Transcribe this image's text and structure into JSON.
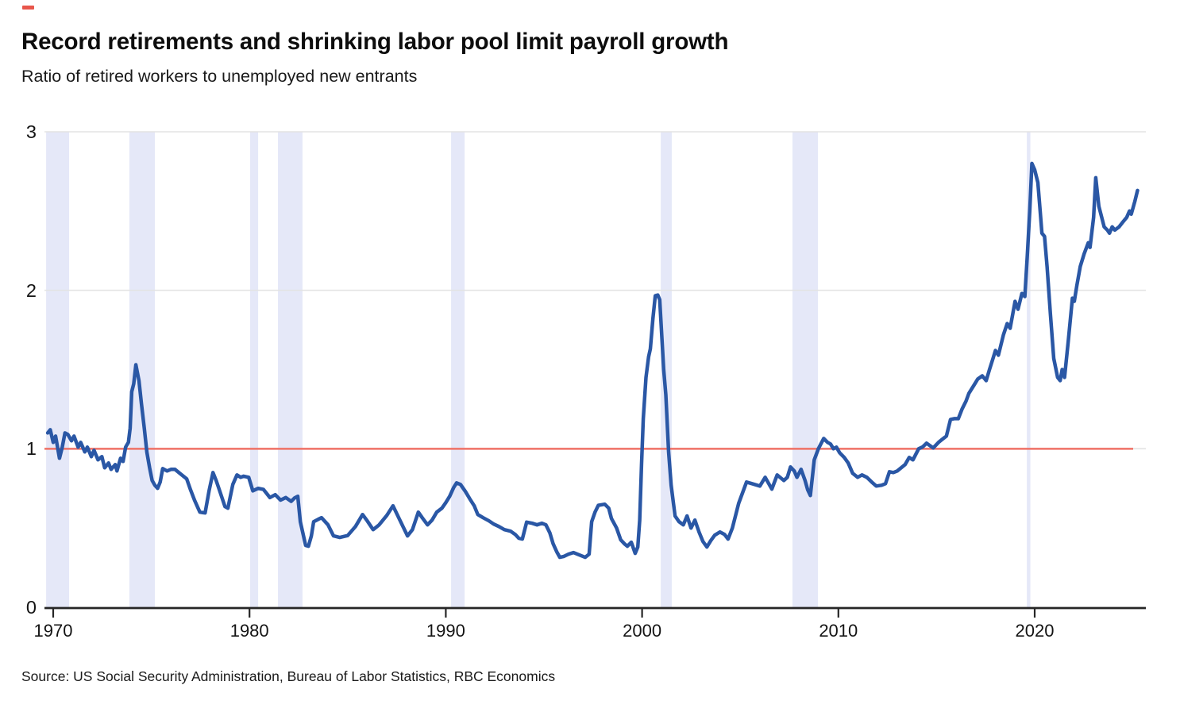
{
  "brand": {
    "accent_color": "#e8564b"
  },
  "header": {
    "title": "Record retirements and shrinking labor pool limit payroll growth",
    "subtitle": "Ratio of retired workers to unemployed new entrants"
  },
  "footer": {
    "source": "Source: US Social Security Administration, Bureau of Labor Statistics, RBC Economics"
  },
  "chart_data": {
    "type": "line",
    "title": "Record retirements and shrinking labor pool limit payroll growth",
    "subtitle": "Ratio of retired workers to unemployed new entrants",
    "xlabel": "",
    "ylabel": "",
    "xlim": [
      1969.55,
      2025.8
    ],
    "ylim": [
      0,
      3
    ],
    "x_ticks": [
      1970,
      1980,
      1990,
      2000,
      2010,
      2020
    ],
    "y_ticks": [
      0,
      1,
      2,
      3
    ],
    "grid": "horizontal",
    "gridline_color": "#e3e3e3",
    "axis_color": "#262626",
    "reference_line": {
      "value": 1.0,
      "color": "#ef7166"
    },
    "recession_bands": {
      "color": "#e5e8f8",
      "year_ranges": [
        [
          1969.64,
          1970.81
        ],
        [
          1973.88,
          1975.18
        ],
        [
          1980.03,
          1980.44
        ],
        [
          1981.45,
          1982.7
        ],
        [
          1990.27,
          1990.96
        ],
        [
          2000.95,
          2001.51
        ],
        [
          2007.66,
          2008.96
        ],
        [
          2019.6,
          2019.78
        ]
      ]
    },
    "series": [
      {
        "name": "Ratio of retired workers to unemployed new entrants",
        "color": "#2a57a5",
        "points": [
          [
            1969.72,
            1.1
          ],
          [
            1969.85,
            1.12
          ],
          [
            1970.0,
            1.04
          ],
          [
            1970.12,
            1.08
          ],
          [
            1970.32,
            0.94
          ],
          [
            1970.46,
            1.01
          ],
          [
            1970.6,
            1.1
          ],
          [
            1970.75,
            1.09
          ],
          [
            1970.93,
            1.05
          ],
          [
            1971.06,
            1.08
          ],
          [
            1971.27,
            1.01
          ],
          [
            1971.4,
            1.04
          ],
          [
            1971.61,
            0.98
          ],
          [
            1971.74,
            1.01
          ],
          [
            1971.94,
            0.95
          ],
          [
            1972.08,
            0.99
          ],
          [
            1972.28,
            0.93
          ],
          [
            1972.48,
            0.95
          ],
          [
            1972.62,
            0.88
          ],
          [
            1972.82,
            0.91
          ],
          [
            1972.95,
            0.87
          ],
          [
            1973.16,
            0.9
          ],
          [
            1973.25,
            0.86
          ],
          [
            1973.43,
            0.94
          ],
          [
            1973.56,
            0.92
          ],
          [
            1973.69,
            1.01
          ],
          [
            1973.83,
            1.04
          ],
          [
            1973.92,
            1.13
          ],
          [
            1974.0,
            1.36
          ],
          [
            1974.1,
            1.41
          ],
          [
            1974.21,
            1.53
          ],
          [
            1974.37,
            1.43
          ],
          [
            1974.5,
            1.28
          ],
          [
            1974.64,
            1.13
          ],
          [
            1974.77,
            0.98
          ],
          [
            1974.91,
            0.88
          ],
          [
            1975.04,
            0.8
          ],
          [
            1975.18,
            0.77
          ],
          [
            1975.32,
            0.75
          ],
          [
            1975.45,
            0.79
          ],
          [
            1975.58,
            0.875
          ],
          [
            1975.8,
            0.86
          ],
          [
            1976.0,
            0.87
          ],
          [
            1976.2,
            0.87
          ],
          [
            1976.45,
            0.845
          ],
          [
            1976.8,
            0.81
          ],
          [
            1977.0,
            0.74
          ],
          [
            1977.2,
            0.675
          ],
          [
            1977.47,
            0.6
          ],
          [
            1977.74,
            0.595
          ],
          [
            1977.94,
            0.735
          ],
          [
            1978.14,
            0.85
          ],
          [
            1978.3,
            0.8
          ],
          [
            1978.48,
            0.735
          ],
          [
            1978.75,
            0.635
          ],
          [
            1978.9,
            0.625
          ],
          [
            1979.15,
            0.775
          ],
          [
            1979.36,
            0.835
          ],
          [
            1979.55,
            0.82
          ],
          [
            1979.7,
            0.827
          ],
          [
            1979.96,
            0.82
          ],
          [
            1980.17,
            0.734
          ],
          [
            1980.44,
            0.75
          ],
          [
            1980.71,
            0.743
          ],
          [
            1981.04,
            0.692
          ],
          [
            1981.31,
            0.71
          ],
          [
            1981.58,
            0.676
          ],
          [
            1981.85,
            0.692
          ],
          [
            1982.12,
            0.668
          ],
          [
            1982.3,
            0.69
          ],
          [
            1982.46,
            0.7
          ],
          [
            1982.59,
            0.54
          ],
          [
            1982.86,
            0.39
          ],
          [
            1983.0,
            0.385
          ],
          [
            1983.15,
            0.45
          ],
          [
            1983.27,
            0.54
          ],
          [
            1983.5,
            0.555
          ],
          [
            1983.67,
            0.565
          ],
          [
            1984.0,
            0.52
          ],
          [
            1984.28,
            0.45
          ],
          [
            1984.6,
            0.44
          ],
          [
            1985.0,
            0.452
          ],
          [
            1985.4,
            0.51
          ],
          [
            1985.76,
            0.585
          ],
          [
            1986.0,
            0.545
          ],
          [
            1986.3,
            0.49
          ],
          [
            1986.6,
            0.52
          ],
          [
            1987.0,
            0.58
          ],
          [
            1987.31,
            0.64
          ],
          [
            1987.6,
            0.565
          ],
          [
            1988.05,
            0.45
          ],
          [
            1988.3,
            0.49
          ],
          [
            1988.6,
            0.6
          ],
          [
            1988.8,
            0.565
          ],
          [
            1989.07,
            0.52
          ],
          [
            1989.3,
            0.55
          ],
          [
            1989.54,
            0.6
          ],
          [
            1989.8,
            0.625
          ],
          [
            1990.0,
            0.66
          ],
          [
            1990.2,
            0.7
          ],
          [
            1990.4,
            0.755
          ],
          [
            1990.55,
            0.785
          ],
          [
            1990.75,
            0.775
          ],
          [
            1991.0,
            0.73
          ],
          [
            1991.22,
            0.684
          ],
          [
            1991.45,
            0.64
          ],
          [
            1991.63,
            0.585
          ],
          [
            1991.9,
            0.565
          ],
          [
            1992.2,
            0.545
          ],
          [
            1992.44,
            0.525
          ],
          [
            1992.7,
            0.51
          ],
          [
            1992.98,
            0.49
          ],
          [
            1993.3,
            0.48
          ],
          [
            1993.55,
            0.458
          ],
          [
            1993.72,
            0.435
          ],
          [
            1993.9,
            0.43
          ],
          [
            1994.12,
            0.537
          ],
          [
            1994.4,
            0.53
          ],
          [
            1994.65,
            0.52
          ],
          [
            1994.9,
            0.53
          ],
          [
            1995.1,
            0.52
          ],
          [
            1995.3,
            0.47
          ],
          [
            1995.47,
            0.4
          ],
          [
            1995.65,
            0.35
          ],
          [
            1995.81,
            0.315
          ],
          [
            1996.0,
            0.32
          ],
          [
            1996.25,
            0.335
          ],
          [
            1996.5,
            0.345
          ],
          [
            1996.8,
            0.33
          ],
          [
            1997.1,
            0.315
          ],
          [
            1997.3,
            0.335
          ],
          [
            1997.43,
            0.54
          ],
          [
            1997.6,
            0.6
          ],
          [
            1997.77,
            0.643
          ],
          [
            1998.1,
            0.65
          ],
          [
            1998.3,
            0.625
          ],
          [
            1998.44,
            0.56
          ],
          [
            1998.7,
            0.5
          ],
          [
            1998.91,
            0.425
          ],
          [
            1999.1,
            0.4
          ],
          [
            1999.25,
            0.385
          ],
          [
            1999.45,
            0.41
          ],
          [
            1999.65,
            0.34
          ],
          [
            1999.78,
            0.38
          ],
          [
            1999.88,
            0.55
          ],
          [
            1999.97,
            0.9
          ],
          [
            2000.06,
            1.19
          ],
          [
            2000.2,
            1.45
          ],
          [
            2000.33,
            1.58
          ],
          [
            2000.42,
            1.63
          ],
          [
            2000.55,
            1.82
          ],
          [
            2000.67,
            1.965
          ],
          [
            2000.8,
            1.97
          ],
          [
            2000.9,
            1.94
          ],
          [
            2001.0,
            1.72
          ],
          [
            2001.1,
            1.5
          ],
          [
            2001.21,
            1.34
          ],
          [
            2001.35,
            0.98
          ],
          [
            2001.48,
            0.77
          ],
          [
            2001.68,
            0.576
          ],
          [
            2001.88,
            0.54
          ],
          [
            2002.1,
            0.52
          ],
          [
            2002.29,
            0.576
          ],
          [
            2002.49,
            0.5
          ],
          [
            2002.69,
            0.55
          ],
          [
            2002.9,
            0.475
          ],
          [
            2003.1,
            0.415
          ],
          [
            2003.3,
            0.38
          ],
          [
            2003.5,
            0.42
          ],
          [
            2003.7,
            0.455
          ],
          [
            2003.97,
            0.475
          ],
          [
            2004.2,
            0.46
          ],
          [
            2004.38,
            0.43
          ],
          [
            2004.6,
            0.5
          ],
          [
            2004.92,
            0.655
          ],
          [
            2005.32,
            0.79
          ],
          [
            2005.6,
            0.78
          ],
          [
            2006.0,
            0.765
          ],
          [
            2006.27,
            0.82
          ],
          [
            2006.61,
            0.745
          ],
          [
            2006.88,
            0.835
          ],
          [
            2007.22,
            0.8
          ],
          [
            2007.4,
            0.82
          ],
          [
            2007.56,
            0.885
          ],
          [
            2007.75,
            0.86
          ],
          [
            2007.89,
            0.82
          ],
          [
            2008.1,
            0.87
          ],
          [
            2008.3,
            0.8
          ],
          [
            2008.44,
            0.74
          ],
          [
            2008.57,
            0.705
          ],
          [
            2008.77,
            0.93
          ],
          [
            2008.98,
            1.0
          ],
          [
            2009.25,
            1.065
          ],
          [
            2009.45,
            1.04
          ],
          [
            2009.6,
            1.03
          ],
          [
            2009.75,
            1.0
          ],
          [
            2009.9,
            1.01
          ],
          [
            2010.06,
            0.975
          ],
          [
            2010.3,
            0.945
          ],
          [
            2010.5,
            0.91
          ],
          [
            2010.73,
            0.845
          ],
          [
            2010.98,
            0.82
          ],
          [
            2011.2,
            0.835
          ],
          [
            2011.45,
            0.82
          ],
          [
            2011.7,
            0.79
          ],
          [
            2011.93,
            0.765
          ],
          [
            2012.2,
            0.77
          ],
          [
            2012.4,
            0.78
          ],
          [
            2012.6,
            0.855
          ],
          [
            2012.8,
            0.85
          ],
          [
            2013.0,
            0.86
          ],
          [
            2013.2,
            0.88
          ],
          [
            2013.4,
            0.9
          ],
          [
            2013.61,
            0.945
          ],
          [
            2013.8,
            0.93
          ],
          [
            2014.09,
            1.0
          ],
          [
            2014.3,
            1.012
          ],
          [
            2014.49,
            1.035
          ],
          [
            2014.66,
            1.02
          ],
          [
            2014.83,
            1.005
          ],
          [
            2015.1,
            1.04
          ],
          [
            2015.3,
            1.06
          ],
          [
            2015.5,
            1.08
          ],
          [
            2015.71,
            1.185
          ],
          [
            2015.9,
            1.19
          ],
          [
            2016.11,
            1.19
          ],
          [
            2016.3,
            1.25
          ],
          [
            2016.5,
            1.3
          ],
          [
            2016.65,
            1.35
          ],
          [
            2016.9,
            1.4
          ],
          [
            2017.1,
            1.44
          ],
          [
            2017.33,
            1.46
          ],
          [
            2017.53,
            1.43
          ],
          [
            2017.7,
            1.5
          ],
          [
            2017.85,
            1.56
          ],
          [
            2018.0,
            1.62
          ],
          [
            2018.15,
            1.59
          ],
          [
            2018.41,
            1.72
          ],
          [
            2018.6,
            1.79
          ],
          [
            2018.75,
            1.76
          ],
          [
            2019.0,
            1.93
          ],
          [
            2019.15,
            1.88
          ],
          [
            2019.35,
            1.98
          ],
          [
            2019.5,
            1.96
          ],
          [
            2019.62,
            2.21
          ],
          [
            2019.75,
            2.5
          ],
          [
            2019.86,
            2.8
          ],
          [
            2020.0,
            2.76
          ],
          [
            2020.16,
            2.68
          ],
          [
            2020.28,
            2.5
          ],
          [
            2020.37,
            2.36
          ],
          [
            2020.5,
            2.34
          ],
          [
            2020.63,
            2.15
          ],
          [
            2020.8,
            1.85
          ],
          [
            2020.97,
            1.57
          ],
          [
            2021.17,
            1.45
          ],
          [
            2021.3,
            1.43
          ],
          [
            2021.4,
            1.5
          ],
          [
            2021.52,
            1.45
          ],
          [
            2021.71,
            1.68
          ],
          [
            2021.92,
            1.95
          ],
          [
            2022.02,
            1.93
          ],
          [
            2022.15,
            2.03
          ],
          [
            2022.32,
            2.15
          ],
          [
            2022.52,
            2.23
          ],
          [
            2022.73,
            2.3
          ],
          [
            2022.82,
            2.27
          ],
          [
            2023.0,
            2.46
          ],
          [
            2023.11,
            2.71
          ],
          [
            2023.27,
            2.53
          ],
          [
            2023.54,
            2.4
          ],
          [
            2023.7,
            2.38
          ],
          [
            2023.81,
            2.36
          ],
          [
            2023.95,
            2.4
          ],
          [
            2024.08,
            2.38
          ],
          [
            2024.3,
            2.4
          ],
          [
            2024.49,
            2.43
          ],
          [
            2024.69,
            2.46
          ],
          [
            2024.83,
            2.5
          ],
          [
            2024.92,
            2.48
          ],
          [
            2025.1,
            2.56
          ],
          [
            2025.24,
            2.63
          ]
        ]
      }
    ]
  }
}
